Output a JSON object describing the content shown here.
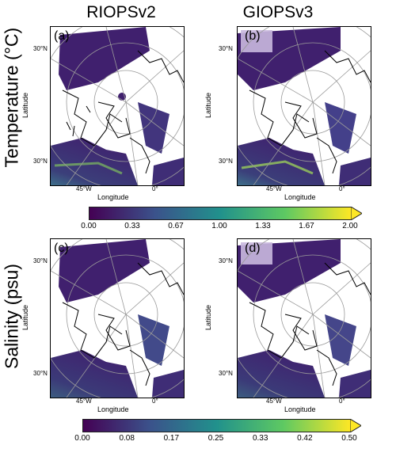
{
  "columns": {
    "left": "RIOPSv2",
    "right": "GIOPSv3"
  },
  "rows": {
    "temperature": "Temperature (°C)",
    "salinity": "Salinity (psu)"
  },
  "axis": {
    "ylabel": "Latitude",
    "xlabel": "Longitude",
    "lat_tick": "30°N",
    "lon_tick_w": "45°W",
    "lon_tick_0": "0°"
  },
  "panels": {
    "a": "(a)",
    "b": "(b)",
    "c": "(c)",
    "d": "(d)"
  },
  "colorbars": {
    "temperature": {
      "ticks": [
        "0.00",
        "0.33",
        "0.67",
        "1.00",
        "1.33",
        "1.67",
        "2.00"
      ],
      "min": 0,
      "max": 2.0,
      "extend": "max",
      "colormap": "viridis"
    },
    "salinity": {
      "ticks": [
        "0.00",
        "0.08",
        "0.17",
        "0.25",
        "0.33",
        "0.42",
        "0.50"
      ],
      "min": 0,
      "max": 0.5,
      "extend": "max",
      "colormap": "viridis"
    }
  },
  "colors": {
    "ocean_low": "#3b1f6e",
    "ocean_mid": "#3a5a8c",
    "ocean_high": "#5ec962",
    "land": "#ffffff",
    "coast": "#000000",
    "grid": "#9a9a9a"
  }
}
